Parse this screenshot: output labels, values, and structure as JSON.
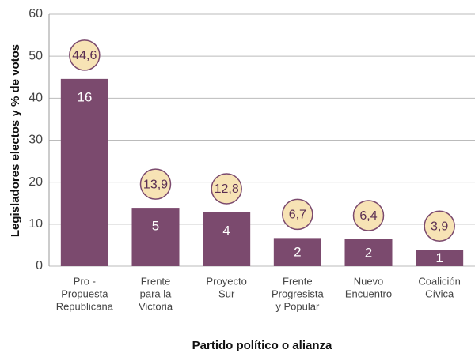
{
  "chart_data": {
    "type": "bar",
    "x_label": "Partido político o alianza",
    "y_label": "Legisladores electos y % de votos",
    "categories": [
      [
        "Pro -",
        "Propuesta",
        "Republicana"
      ],
      [
        "Frente",
        "para la",
        "Victoria"
      ],
      [
        "Proyecto",
        "Sur"
      ],
      [
        "Frente",
        "Progresista",
        "y Popular"
      ],
      [
        "Nuevo",
        "Encuentro"
      ],
      [
        "Coalición",
        "Cívica"
      ]
    ],
    "values": [
      44.6,
      13.9,
      12.8,
      6.7,
      6.4,
      3.9
    ],
    "value_labels": [
      "44,6",
      "13,9",
      "12,8",
      "6,7",
      "6,4",
      "3,9"
    ],
    "bar_labels": [
      16,
      5,
      4,
      2,
      2,
      1
    ],
    "color": "#7b4a6e",
    "ylim": [
      0,
      60
    ],
    "yticks": [
      0,
      10,
      20,
      30,
      40,
      50,
      60
    ],
    "grid": true
  }
}
